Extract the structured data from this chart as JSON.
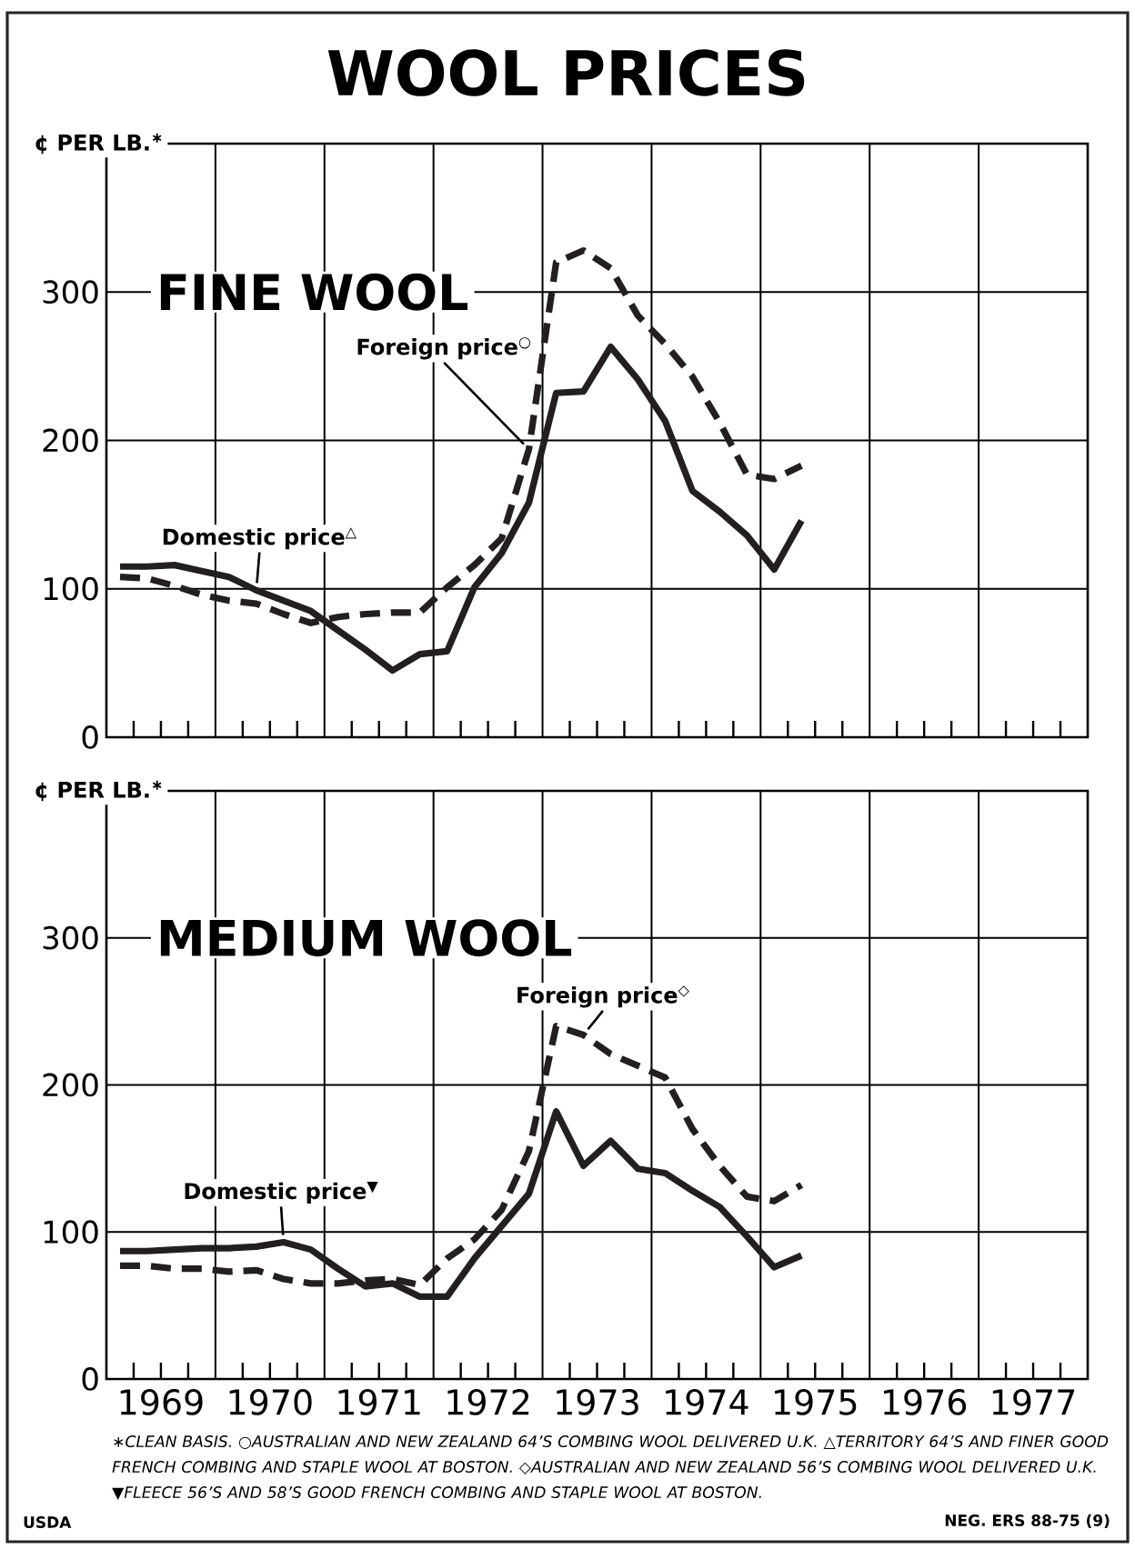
{
  "chart_data": [
    {
      "type": "line",
      "title": "WOOL PRICES",
      "subtitle": "FINE WOOL",
      "ylabel": "¢ PER LB.$^{∗}$",
      "x": [
        1969.125,
        1969.375,
        1969.625,
        1969.875,
        1970.125,
        1970.375,
        1970.625,
        1970.875,
        1971.125,
        1971.375,
        1971.625,
        1971.875,
        1972.125,
        1972.375,
        1972.625,
        1972.875,
        1973.125,
        1973.375,
        1973.625,
        1973.875,
        1974.125,
        1974.375,
        1974.625,
        1974.875,
        1975.125,
        1975.375
      ],
      "xlim": [
        1969,
        1978
      ],
      "xticks": [
        {
          "value": 1969,
          "label": null
        },
        {
          "value": 1970,
          "label": null
        },
        {
          "value": 1971,
          "label": null
        },
        {
          "value": 1972,
          "label": null
        },
        {
          "value": 1973,
          "label": null
        },
        {
          "value": 1974,
          "label": null
        },
        {
          "value": 1975,
          "label": null
        },
        {
          "value": 1976,
          "label": null
        },
        {
          "value": 1977,
          "label": null
        },
        {
          "value": 1978,
          "label": null
        }
      ],
      "ylim": [
        0,
        400
      ],
      "yticks": [
        0,
        100,
        200,
        300
      ],
      "grid": true,
      "tick_labels": "y",
      "series": [
        {
          "name": "Domestic price$^{△}$",
          "color": "#231f20",
          "line_style": "solid",
          "values": [
            115,
            115,
            116,
            112,
            108,
            99,
            92,
            85,
            72,
            59,
            45,
            56,
            58,
            101,
            124,
            158,
            232,
            233,
            263,
            241,
            213,
            166,
            152,
            136,
            113,
            146
          ]
        },
        {
          "name": "Foreign price$^{○}$",
          "color": "#231f20",
          "line_style": "dashed",
          "values": [
            108,
            107,
            102,
            96,
            92,
            90,
            83,
            77,
            81,
            83,
            84,
            84,
            101,
            116,
            134,
            194,
            320,
            328,
            316,
            284,
            265,
            243,
            212,
            177,
            174,
            183
          ]
        }
      ]
    },
    {
      "type": "line",
      "subtitle": "MEDIUM WOOL",
      "ylabel": "¢ PER LB.$^{∗}$",
      "x": [
        1969.125,
        1969.375,
        1969.625,
        1969.875,
        1970.125,
        1970.375,
        1970.625,
        1970.875,
        1971.125,
        1971.375,
        1971.625,
        1971.875,
        1972.125,
        1972.375,
        1972.625,
        1972.875,
        1973.125,
        1973.375,
        1973.625,
        1973.875,
        1974.125,
        1974.375,
        1974.625,
        1974.875,
        1975.125,
        1975.375
      ],
      "xlim": [
        1969,
        1978
      ],
      "xticks": [
        {
          "value": 1969,
          "label": null
        },
        {
          "value": 1969.5,
          "label": "1969"
        },
        {
          "value": 1970,
          "label": null
        },
        {
          "value": 1970.5,
          "label": "1970"
        },
        {
          "value": 1971,
          "label": null
        },
        {
          "value": 1971.5,
          "label": "1971"
        },
        {
          "value": 1972,
          "label": null
        },
        {
          "value": 1972.5,
          "label": "1972"
        },
        {
          "value": 1973,
          "label": null
        },
        {
          "value": 1973.5,
          "label": "1973"
        },
        {
          "value": 1974,
          "label": null
        },
        {
          "value": 1974.5,
          "label": "1974"
        },
        {
          "value": 1975,
          "label": null
        },
        {
          "value": 1975.5,
          "label": "1975"
        },
        {
          "value": 1976,
          "label": null
        },
        {
          "value": 1976.5,
          "label": "1976"
        },
        {
          "value": 1977,
          "label": null
        },
        {
          "value": 1977.5,
          "label": "1977"
        },
        {
          "value": 1978,
          "label": null
        }
      ],
      "ylim": [
        0,
        400
      ],
      "yticks": [
        0,
        100,
        200,
        300
      ],
      "grid": true,
      "series": [
        {
          "name": "Domestic price$^{▼}$",
          "color": "#231f20",
          "line_style": "solid",
          "values": [
            87,
            87,
            88,
            89,
            89,
            90,
            93,
            88,
            75,
            63,
            65,
            56,
            56,
            82,
            104,
            126,
            182,
            145,
            162,
            143,
            140,
            128,
            117,
            97,
            76,
            84
          ]
        },
        {
          "name": "Foreign price$^{◇}$",
          "color": "#231f20",
          "line_style": "dashed",
          "values": [
            77,
            77,
            75,
            75,
            73,
            74,
            68,
            65,
            65,
            67,
            68,
            64,
            82,
            95,
            115,
            155,
            240,
            234,
            221,
            213,
            205,
            170,
            145,
            124,
            121,
            132
          ]
        }
      ],
      "annotations": [
        "∗CLEAN BASIS. ○AUSTRALIAN AND NEW ZEALAND 64’S COMBING WOOL DELIVERED U.K. △TERRITORY 64’S AND FINER GOOD FRENCH COMBING AND STAPLE WOOL AT BOSTON. ◇AUSTRALIAN AND NEW ZEALAND 56’S COMBING WOOL DELIVERED U.K. ▼FLEECE 56’S AND 58’S GOOD FRENCH COMBING AND STAPLE WOOL AT BOSTON.",
        "USDA",
        "NEG. ERS 88-75 (9)"
      ]
    }
  ]
}
